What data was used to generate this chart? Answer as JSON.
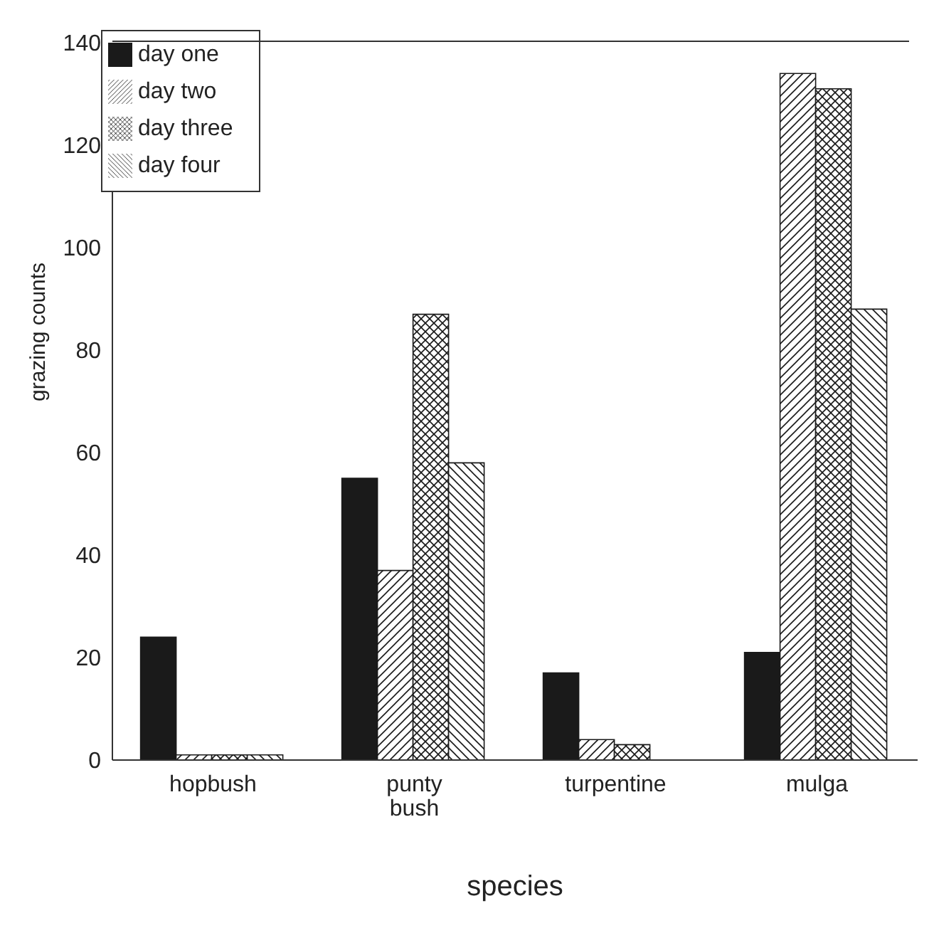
{
  "chart_data": {
    "type": "bar",
    "xlabel": "species",
    "ylabel": "grazing counts",
    "categories": [
      "hopbush",
      "punty bush",
      "turpentine",
      "mulga"
    ],
    "series": [
      {
        "name": "day one",
        "color": "#1a1a1a",
        "values": [
          24,
          55,
          17,
          21
        ]
      },
      {
        "name": "day two",
        "color": "#1a1a1a",
        "values": [
          1,
          37,
          4,
          134
        ]
      },
      {
        "name": "day three",
        "color": "#1a1a1a",
        "values": [
          1,
          87,
          3,
          131
        ]
      },
      {
        "name": "day four",
        "color": "#1a1a1a",
        "values": [
          1,
          58,
          0,
          88
        ]
      }
    ],
    "ylim": [
      0,
      140
    ],
    "yticks": [
      0,
      20,
      40,
      60,
      80,
      100,
      120,
      140
    ],
    "grid": false,
    "legend": "top left"
  }
}
